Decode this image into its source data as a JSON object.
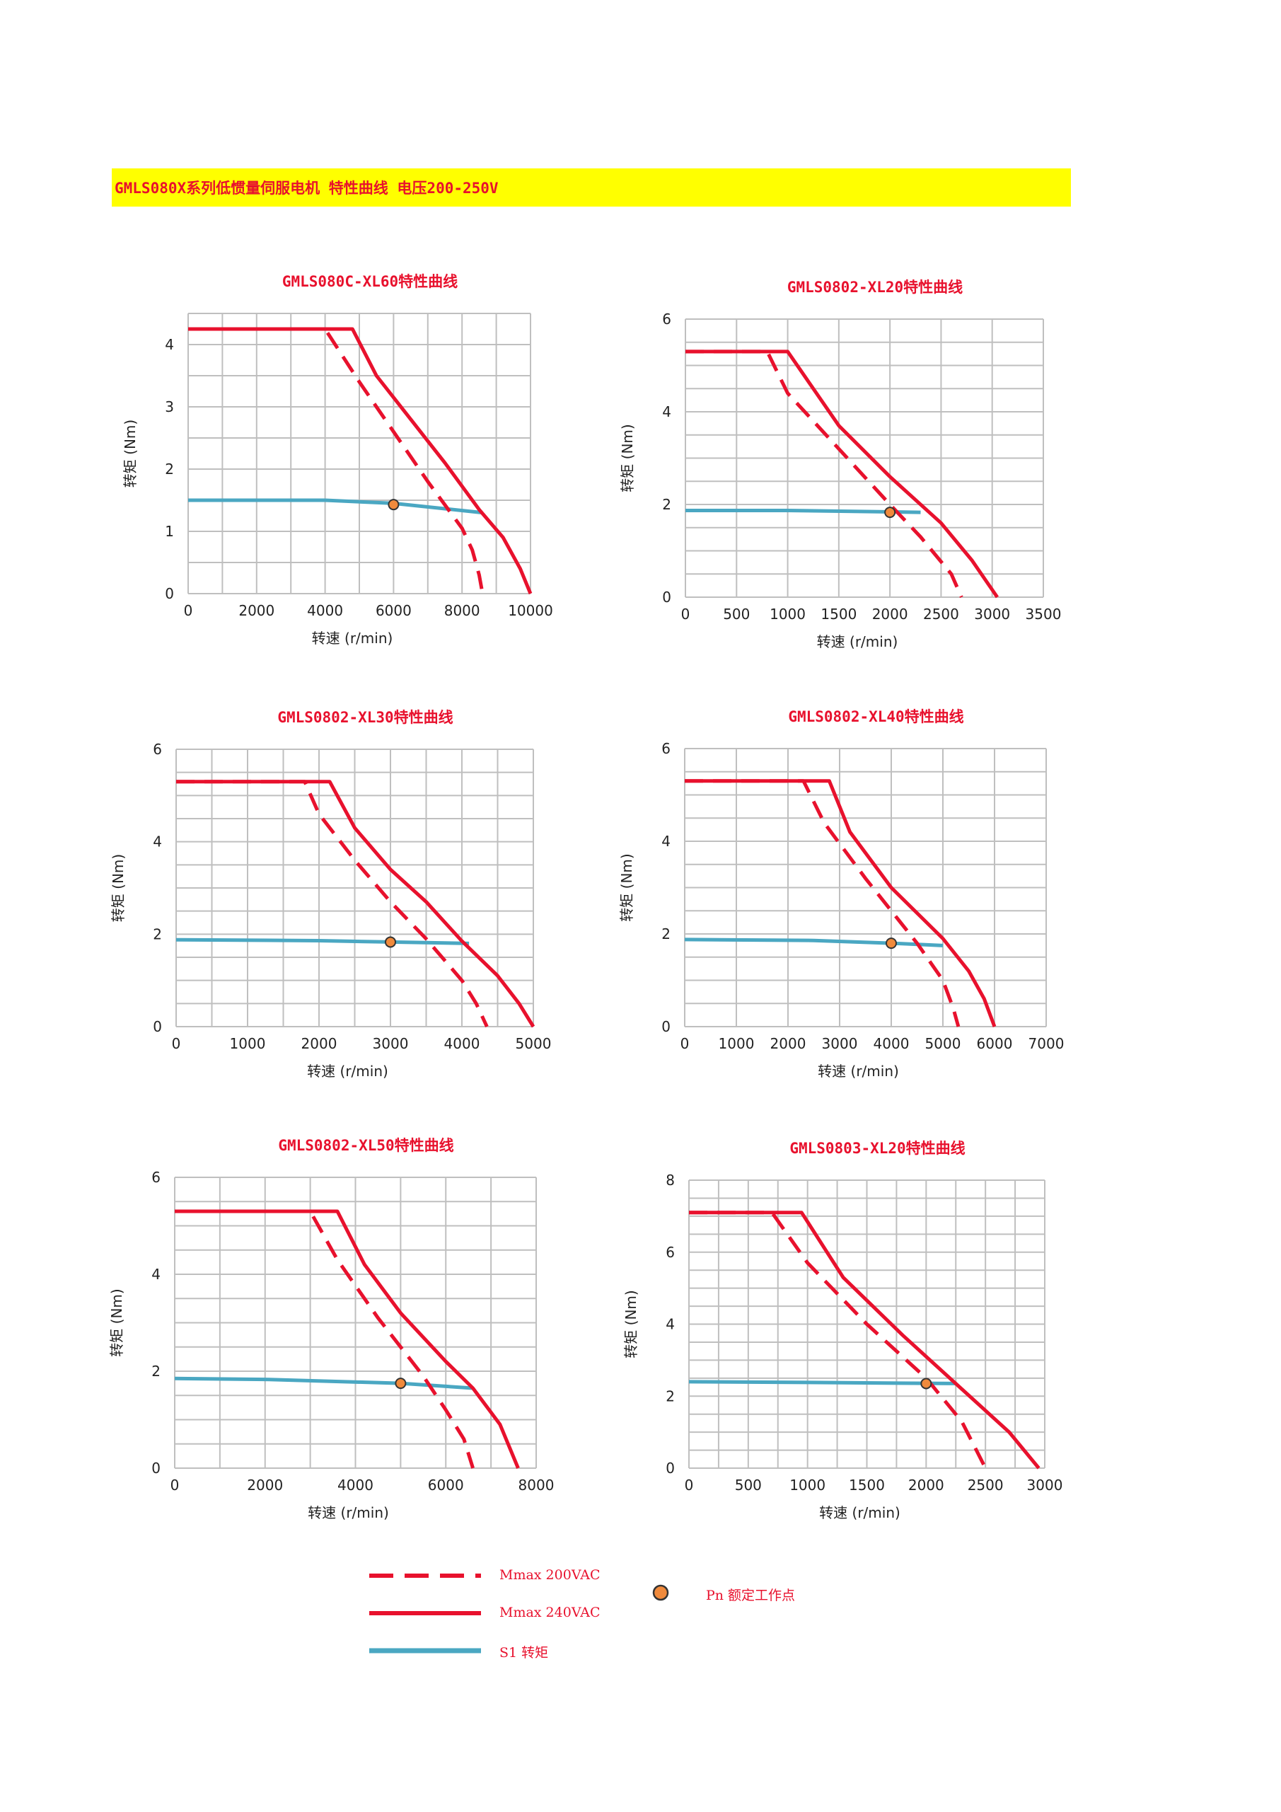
{
  "banner": {
    "title": "GMLS080X系列低惯量伺服电机 特性曲线 电压200-250V"
  },
  "colors": {
    "red": "#e8112d",
    "teal": "#4aa7c2",
    "point": "#f08a3c",
    "grid": "#bfbfbf",
    "banner": "#ffff00"
  },
  "legend": {
    "dashed_label": "Mmax 200VAC",
    "solid_label": "Mmax 240VAC",
    "s1_label": "S1 转矩",
    "point_label": "Pn 额定工作点"
  },
  "chart_data": [
    {
      "type": "line",
      "title": "GMLS080C-XL60特性曲线",
      "xlabel": "转速 (r/min)",
      "ylabel": "转矩 (Nm)",
      "xlim": [
        0,
        10000
      ],
      "ylim": [
        0,
        4.5
      ],
      "xticks": [
        0,
        2000,
        4000,
        6000,
        8000,
        10000
      ],
      "yticks": [
        0,
        1,
        2,
        3,
        4
      ],
      "grid": true,
      "series": [
        {
          "name": "Mmax 200VAC",
          "style": "dashed",
          "x": [
            0,
            4000,
            5000,
            6000,
            7000,
            8000,
            8300,
            8500,
            8600
          ],
          "y": [
            4.25,
            4.25,
            3.4,
            2.6,
            1.8,
            1.05,
            0.7,
            0.3,
            0.0
          ]
        },
        {
          "name": "Mmax 240VAC",
          "style": "solid",
          "x": [
            0,
            4800,
            5500,
            6500,
            7500,
            8500,
            9200,
            9700,
            10000
          ],
          "y": [
            4.25,
            4.25,
            3.5,
            2.8,
            2.1,
            1.35,
            0.9,
            0.4,
            0.0
          ]
        },
        {
          "name": "S1 转矩",
          "style": "teal",
          "x": [
            0,
            4000,
            6000,
            8600
          ],
          "y": [
            1.5,
            1.5,
            1.45,
            1.3
          ]
        }
      ],
      "rated_point": {
        "x": 6000,
        "y": 1.43
      }
    },
    {
      "type": "line",
      "title": "GMLS0802-XL20特性曲线",
      "xlabel": "转速 (r/min)",
      "ylabel": "转矩 (Nm)",
      "xlim": [
        0,
        3500
      ],
      "ylim": [
        0,
        6
      ],
      "xticks": [
        0,
        500,
        1000,
        1500,
        2000,
        2500,
        3000,
        3500
      ],
      "yticks": [
        0,
        2,
        4,
        6
      ],
      "grid": true,
      "series": [
        {
          "name": "Mmax 200VAC",
          "style": "dashed",
          "x": [
            0,
            800,
            1000,
            1500,
            2000,
            2300,
            2600,
            2700
          ],
          "y": [
            5.3,
            5.3,
            4.4,
            3.2,
            2.0,
            1.3,
            0.5,
            0.0
          ]
        },
        {
          "name": "Mmax 240VAC",
          "style": "solid",
          "x": [
            0,
            1000,
            1500,
            2000,
            2500,
            2800,
            3050
          ],
          "y": [
            5.3,
            5.3,
            3.7,
            2.6,
            1.6,
            0.8,
            0.0
          ]
        },
        {
          "name": "S1 转矩",
          "style": "teal",
          "x": [
            0,
            1000,
            2300
          ],
          "y": [
            1.87,
            1.87,
            1.83
          ]
        }
      ],
      "rated_point": {
        "x": 2000,
        "y": 1.83
      }
    },
    {
      "type": "line",
      "title": "GMLS0802-XL30特性曲线",
      "xlabel": "转速 (r/min)",
      "ylabel": "转矩 (Nm)",
      "xlim": [
        0,
        5000
      ],
      "ylim": [
        0,
        6
      ],
      "xticks": [
        0,
        1000,
        2000,
        3000,
        4000,
        5000
      ],
      "yticks": [
        0,
        2,
        4,
        6
      ],
      "grid": true,
      "series": [
        {
          "name": "Mmax 200VAC",
          "style": "dashed",
          "x": [
            0,
            1800,
            2000,
            2500,
            3000,
            3500,
            4000,
            4200,
            4350
          ],
          "y": [
            5.3,
            5.3,
            4.6,
            3.6,
            2.7,
            1.9,
            1.0,
            0.5,
            0.0
          ]
        },
        {
          "name": "Mmax 240VAC",
          "style": "solid",
          "x": [
            0,
            2150,
            2500,
            3000,
            3500,
            4000,
            4500,
            4800,
            5000
          ],
          "y": [
            5.3,
            5.3,
            4.3,
            3.4,
            2.7,
            1.85,
            1.1,
            0.5,
            0.0
          ]
        },
        {
          "name": "S1 转矩",
          "style": "teal",
          "x": [
            0,
            2000,
            3000,
            4100
          ],
          "y": [
            1.88,
            1.86,
            1.83,
            1.8
          ]
        }
      ],
      "rated_point": {
        "x": 3000,
        "y": 1.83
      }
    },
    {
      "type": "line",
      "title": "GMLS0802-XL40特性曲线",
      "xlabel": "转速 (r/min)",
      "ylabel": "转矩 (Nm)",
      "xlim": [
        0,
        7000
      ],
      "ylim": [
        0,
        6
      ],
      "xticks": [
        0,
        1000,
        2000,
        3000,
        4000,
        5000,
        6000,
        7000
      ],
      "yticks": [
        0,
        2,
        4,
        6
      ],
      "grid": true,
      "series": [
        {
          "name": "Mmax 200VAC",
          "style": "dashed",
          "x": [
            0,
            2300,
            2700,
            3500,
            4500,
            5000,
            5200,
            5300
          ],
          "y": [
            5.3,
            5.3,
            4.4,
            3.2,
            1.8,
            1.0,
            0.4,
            0.0
          ]
        },
        {
          "name": "Mmax 240VAC",
          "style": "solid",
          "x": [
            0,
            2800,
            3200,
            4000,
            5000,
            5500,
            5800,
            6000
          ],
          "y": [
            5.3,
            5.3,
            4.2,
            3.0,
            1.9,
            1.2,
            0.6,
            0.0
          ]
        },
        {
          "name": "S1 转矩",
          "style": "teal",
          "x": [
            0,
            2500,
            4000,
            5000
          ],
          "y": [
            1.88,
            1.86,
            1.8,
            1.75
          ]
        }
      ],
      "rated_point": {
        "x": 4000,
        "y": 1.8
      }
    },
    {
      "type": "line",
      "title": "GMLS0802-XL50特性曲线",
      "xlabel": "转速 (r/min)",
      "ylabel": "转矩 (Nm)",
      "xlim": [
        0,
        8000
      ],
      "ylim": [
        0,
        6
      ],
      "xticks": [
        0,
        2000,
        4000,
        6000,
        8000
      ],
      "yticks": [
        0,
        2,
        4,
        6
      ],
      "grid": true,
      "series": [
        {
          "name": "Mmax 200VAC",
          "style": "dashed",
          "x": [
            0,
            3000,
            3600,
            4500,
            5500,
            6000,
            6400,
            6600
          ],
          "y": [
            5.3,
            5.3,
            4.3,
            3.1,
            1.9,
            1.2,
            0.6,
            0.0
          ]
        },
        {
          "name": "Mmax 240VAC",
          "style": "solid",
          "x": [
            0,
            3600,
            4200,
            5000,
            6000,
            6600,
            7200,
            7600
          ],
          "y": [
            5.3,
            5.3,
            4.2,
            3.2,
            2.2,
            1.65,
            0.9,
            0.0
          ]
        },
        {
          "name": "S1 转矩",
          "style": "teal",
          "x": [
            0,
            2000,
            5000,
            6600
          ],
          "y": [
            1.85,
            1.83,
            1.75,
            1.65
          ]
        }
      ],
      "rated_point": {
        "x": 5000,
        "y": 1.75
      }
    },
    {
      "type": "line",
      "title": "GMLS0803-XL20特性曲线",
      "xlabel": "转速 (r/min)",
      "ylabel": "转矩 (Nm)",
      "xlim": [
        0,
        3000
      ],
      "ylim": [
        0,
        8
      ],
      "xticks": [
        0,
        500,
        1000,
        1500,
        2000,
        2500,
        3000
      ],
      "yticks": [
        0,
        2,
        4,
        6,
        8
      ],
      "grid": true,
      "series": [
        {
          "name": "Mmax 200VAC",
          "style": "dashed",
          "x": [
            0,
            700,
            1000,
            1500,
            2000,
            2300,
            2500
          ],
          "y": [
            7.1,
            7.1,
            5.7,
            4.0,
            2.5,
            1.3,
            0.0
          ]
        },
        {
          "name": "Mmax 240VAC",
          "style": "solid",
          "x": [
            0,
            950,
            1300,
            1800,
            2300,
            2700,
            2950
          ],
          "y": [
            7.1,
            7.1,
            5.3,
            3.7,
            2.2,
            1.0,
            0.0
          ]
        },
        {
          "name": "S1 转矩",
          "style": "teal",
          "x": [
            0,
            1000,
            2250
          ],
          "y": [
            2.4,
            2.38,
            2.35
          ]
        }
      ],
      "rated_point": {
        "x": 2000,
        "y": 2.35
      }
    }
  ]
}
